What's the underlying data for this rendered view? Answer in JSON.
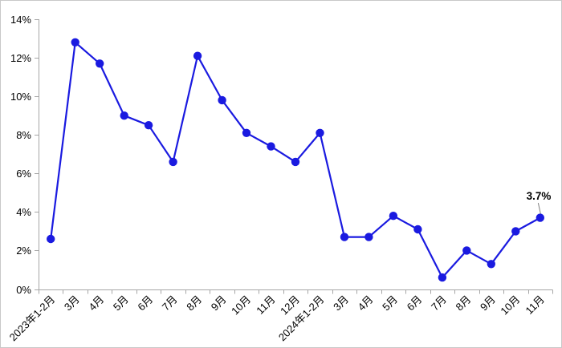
{
  "frame": {
    "background": "#ffffff",
    "border_color": "#c8c8c8"
  },
  "chart_data": {
    "type": "line",
    "categories": [
      "2023年1-2月",
      "3月",
      "4月",
      "5月",
      "6月",
      "7月",
      "8月",
      "9月",
      "10月",
      "11月",
      "12月",
      "2024年1-2月",
      "3月",
      "4月",
      "5月",
      "6月",
      "7月",
      "8月",
      "9月",
      "10月",
      "11月"
    ],
    "values": [
      2.6,
      12.8,
      11.7,
      9.0,
      8.5,
      6.6,
      12.1,
      9.8,
      8.1,
      7.4,
      6.6,
      8.1,
      2.7,
      2.7,
      3.8,
      3.1,
      0.6,
      2.0,
      1.3,
      3.0,
      3.7
    ],
    "title": "",
    "xlabel": "",
    "ylabel": "",
    "ylim": [
      0,
      14
    ],
    "ytick_labels": [
      "0%",
      "2%",
      "4%",
      "6%",
      "8%",
      "10%",
      "12%",
      "14%"
    ],
    "grid": false,
    "legend": false,
    "annotation": {
      "text": "3.7%",
      "point_index": 20
    },
    "series_color": "#1a1ae0",
    "axis_color": "#a6a6a6",
    "leader_color": "#7f7f7f",
    "label_color": "#000000"
  }
}
